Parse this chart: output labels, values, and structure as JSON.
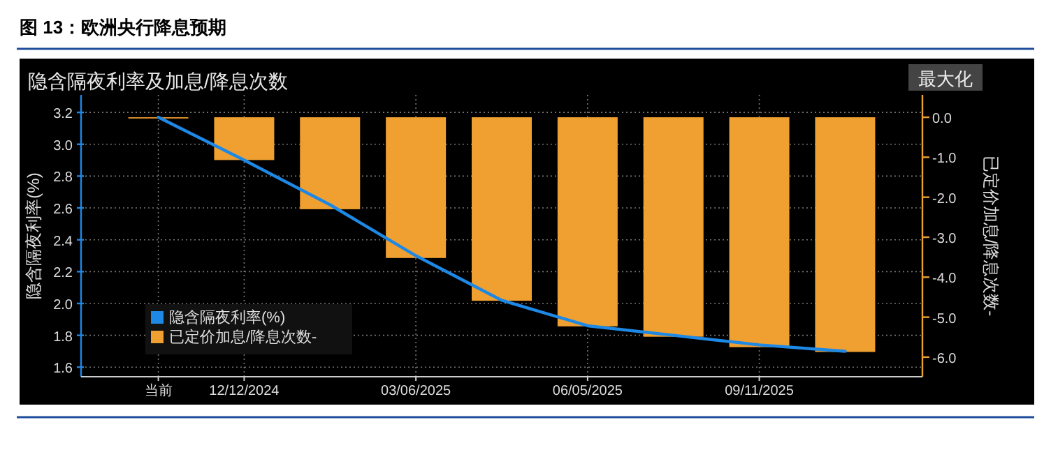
{
  "chart_data": {
    "type": "bar",
    "title": "图 13：欧洲央行降息预期",
    "subtitle": "隐含隔夜利率及加息/降息次数",
    "ylabel": "隐含隔夜利率(%)",
    "y2label": "已定价加息/降息次数-",
    "categories": [
      "当前",
      "12/12/2024",
      null,
      "03/06/2025",
      null,
      "06/05/2025",
      null,
      "09/11/2025",
      null
    ],
    "series": [
      {
        "name": "隐含隔夜利率(%)",
        "type": "line",
        "color": "#1e88e5",
        "values": [
          3.17,
          2.9,
          2.62,
          2.3,
          2.02,
          1.86,
          1.8,
          1.74,
          1.7
        ]
      },
      {
        "name": "已定价加息/降息次数-",
        "axis": "y2",
        "color": "#f0a030",
        "values": [
          -0.03,
          -1.07,
          -2.3,
          -3.52,
          -4.59,
          -5.23,
          -5.49,
          -5.75,
          -5.87
        ]
      }
    ],
    "ylim": [
      1.54,
      3.31
    ],
    "yticks": [
      1.6,
      1.8,
      {
        "value": 2,
        "label": "2.0"
      },
      2.2,
      2.4,
      2.6,
      2.8,
      {
        "value": 3,
        "label": "3.0"
      },
      3.2
    ],
    "y2lim": [
      -6.49,
      0.56
    ],
    "y2ticks": [
      {
        "value": -6,
        "label": "-6.0"
      },
      {
        "value": -5,
        "label": "-5.0"
      },
      {
        "value": -4,
        "label": "-4.0"
      },
      {
        "value": -3,
        "label": "-3.0"
      },
      {
        "value": -2,
        "label": "-2.0"
      },
      {
        "value": -1,
        "label": "-1.0"
      },
      {
        "value": 0,
        "label": "0.0"
      }
    ],
    "grid": true,
    "legend": "bottom left",
    "annotations": [
      "最大化"
    ]
  }
}
